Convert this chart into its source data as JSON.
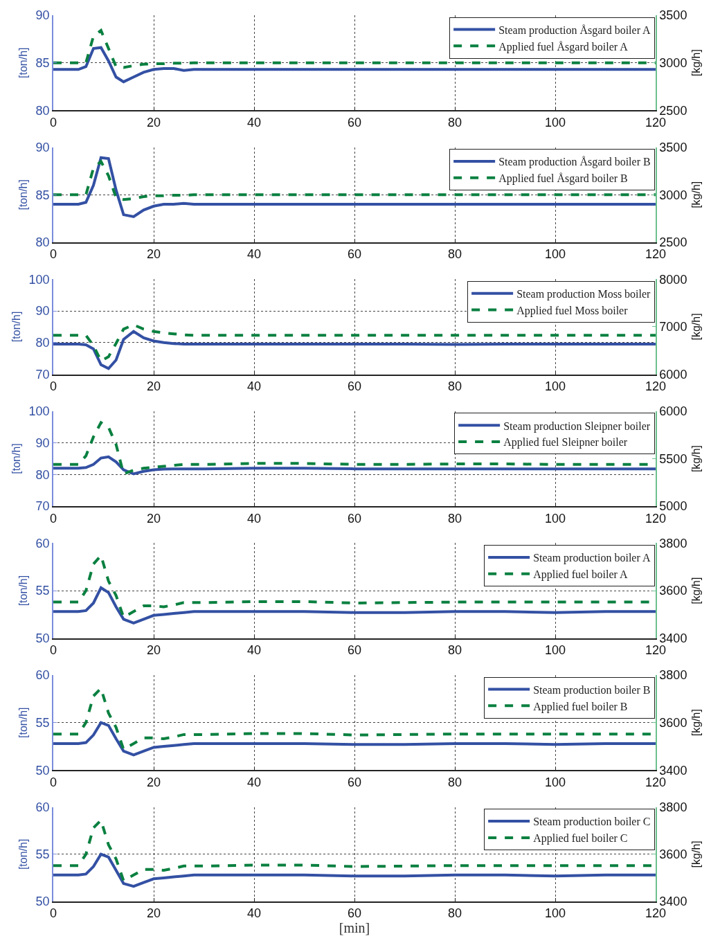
{
  "chart_data": [
    {
      "type": "line",
      "x": [
        0,
        5,
        6.5,
        8,
        9.5,
        11,
        12.5,
        14,
        16,
        18,
        20,
        22,
        24,
        26,
        28,
        30,
        40,
        50,
        60,
        70,
        80,
        90,
        100,
        110,
        120
      ],
      "xlim": [
        0,
        120
      ],
      "xticks": [
        0,
        20,
        40,
        60,
        80,
        100,
        120
      ],
      "ylim": [
        80,
        90
      ],
      "yticks": [
        80,
        85,
        90
      ],
      "y2lim": [
        2500,
        3500
      ],
      "y2ticks": [
        2500,
        3000,
        3500
      ],
      "ylabel": "[ton/h]",
      "y2label": "[kg/h]",
      "grid": true,
      "legend": "top right",
      "series": [
        {
          "name": "Steam production Åsgard boiler A",
          "color": "#3350a3",
          "line_style": "solid",
          "values": [
            84.3,
            84.3,
            84.6,
            86.5,
            86.6,
            85.2,
            83.5,
            83.0,
            83.5,
            84.0,
            84.3,
            84.4,
            84.4,
            84.2,
            84.3,
            84.3,
            84.3,
            84.3,
            84.3,
            84.3,
            84.3,
            84.3,
            84.3,
            84.3,
            84.3
          ]
        },
        {
          "name": "Applied fuel Åsgard boiler A",
          "color": "#0a8040",
          "line_style": "dashed",
          "axis": "y2",
          "values": [
            3000,
            3000,
            3000,
            3280,
            3340,
            3150,
            2960,
            2950,
            2970,
            2985,
            2990,
            2990,
            2995,
            2995,
            3000,
            3000,
            3000,
            3000,
            3000,
            3000,
            3000,
            3000,
            3000,
            3000,
            3000
          ]
        }
      ]
    },
    {
      "type": "line",
      "x": [
        0,
        5,
        6.5,
        8,
        9.5,
        11,
        12.5,
        14,
        16,
        18,
        20,
        22,
        24,
        26,
        28,
        30,
        40,
        50,
        60,
        70,
        80,
        90,
        100,
        110,
        120
      ],
      "xlim": [
        0,
        120
      ],
      "xticks": [
        0,
        20,
        40,
        60,
        80,
        100,
        120
      ],
      "ylim": [
        80,
        90
      ],
      "yticks": [
        80,
        85,
        90
      ],
      "y2lim": [
        2500,
        3500
      ],
      "y2ticks": [
        2500,
        3000,
        3500
      ],
      "ylabel": "[ton/h]",
      "y2label": "[kg/h]",
      "grid": true,
      "legend": "top right",
      "series": [
        {
          "name": "Steam production Åsgard boiler B",
          "color": "#3350a3",
          "line_style": "solid",
          "values": [
            84.0,
            84.0,
            84.2,
            86.0,
            88.9,
            88.8,
            85.5,
            82.9,
            82.7,
            83.4,
            83.8,
            84.0,
            84.0,
            84.1,
            84.0,
            84.0,
            84.0,
            84.0,
            84.0,
            84.0,
            84.0,
            84.0,
            84.0,
            84.0,
            84.0
          ]
        },
        {
          "name": "Applied fuel Åsgard boiler B",
          "color": "#0a8040",
          "line_style": "dashed",
          "axis": "y2",
          "values": [
            3000,
            3000,
            3000,
            3280,
            3350,
            3200,
            2970,
            2950,
            2960,
            2980,
            2990,
            2990,
            2995,
            2995,
            3000,
            3000,
            3000,
            3000,
            3000,
            3000,
            3000,
            3000,
            3000,
            3000,
            3000
          ]
        }
      ]
    },
    {
      "type": "line",
      "x": [
        0,
        5,
        6.5,
        8,
        9.5,
        11,
        12.5,
        14,
        16,
        18,
        20,
        22,
        24,
        26,
        28,
        30,
        40,
        50,
        60,
        70,
        80,
        90,
        100,
        110,
        120
      ],
      "xlim": [
        0,
        120
      ],
      "xticks": [
        0,
        20,
        40,
        60,
        80,
        100,
        120
      ],
      "ylim": [
        70,
        100
      ],
      "yticks": [
        70,
        80,
        90,
        100
      ],
      "y2lim": [
        6000,
        8000
      ],
      "y2ticks": [
        6000,
        7000,
        8000
      ],
      "ylabel": "[ton/h]",
      "y2label": "[kg/h]",
      "grid": true,
      "legend": "top right",
      "series": [
        {
          "name": "Steam production Moss boiler",
          "color": "#3350a3",
          "line_style": "solid",
          "values": [
            79.5,
            79.5,
            79.3,
            78.0,
            73.0,
            71.8,
            74.5,
            81.0,
            83.5,
            81.5,
            80.5,
            80.0,
            79.7,
            79.5,
            79.5,
            79.5,
            79.5,
            79.5,
            79.5,
            79.5,
            79.4,
            79.5,
            79.5,
            79.5,
            79.5
          ]
        },
        {
          "name": "Applied fuel Moss boiler",
          "color": "#0a8040",
          "line_style": "dashed",
          "axis": "y2",
          "values": [
            6820,
            6820,
            6820,
            6600,
            6280,
            6370,
            6650,
            6950,
            7040,
            6950,
            6900,
            6870,
            6850,
            6830,
            6820,
            6820,
            6820,
            6820,
            6820,
            6820,
            6820,
            6820,
            6820,
            6820,
            6820
          ]
        }
      ]
    },
    {
      "type": "line",
      "x": [
        0,
        5,
        6.5,
        8,
        9.5,
        11,
        12.5,
        14,
        16,
        18,
        20,
        22,
        24,
        26,
        28,
        30,
        40,
        50,
        60,
        70,
        80,
        90,
        100,
        110,
        120
      ],
      "xlim": [
        0,
        120
      ],
      "xticks": [
        0,
        20,
        40,
        60,
        80,
        100,
        120
      ],
      "ylim": [
        70,
        100
      ],
      "yticks": [
        70,
        80,
        90,
        100
      ],
      "y2lim": [
        5000,
        6000
      ],
      "y2ticks": [
        5000,
        5500,
        6000
      ],
      "ylabel": "[ton/h]",
      "y2label": "[kg/h]",
      "grid": true,
      "legend": "top right",
      "series": [
        {
          "name": "Steam production Sleipner boiler",
          "color": "#3350a3",
          "line_style": "solid",
          "values": [
            82.0,
            82.0,
            82.2,
            83.2,
            85.2,
            85.6,
            84.0,
            81.5,
            80.2,
            81.0,
            81.5,
            81.7,
            81.8,
            81.8,
            81.8,
            81.8,
            82.0,
            82.0,
            81.8,
            81.8,
            81.8,
            81.8,
            81.8,
            81.8,
            81.8
          ]
        },
        {
          "name": "Applied fuel Sleipner boiler",
          "color": "#0a8040",
          "line_style": "dashed",
          "axis": "y2",
          "values": [
            5440,
            5440,
            5530,
            5730,
            5880,
            5830,
            5650,
            5340,
            5380,
            5400,
            5410,
            5420,
            5430,
            5440,
            5440,
            5440,
            5450,
            5450,
            5440,
            5440,
            5445,
            5445,
            5440,
            5440,
            5440
          ]
        }
      ]
    },
    {
      "type": "line",
      "x": [
        0,
        5,
        6.5,
        8,
        9.5,
        11,
        12.5,
        14,
        16,
        18,
        20,
        22,
        24,
        26,
        28,
        30,
        40,
        50,
        60,
        70,
        80,
        90,
        100,
        110,
        120
      ],
      "xlim": [
        0,
        120
      ],
      "xticks": [
        0,
        20,
        40,
        60,
        80,
        100,
        120
      ],
      "ylim": [
        50,
        60
      ],
      "yticks": [
        50,
        55,
        60
      ],
      "y2lim": [
        3400,
        3800
      ],
      "y2ticks": [
        3400,
        3600,
        3800
      ],
      "ylabel": "[ton/h]",
      "y2label": "[kg/h]",
      "grid": true,
      "legend": "top right",
      "series": [
        {
          "name": "Steam production boiler A",
          "color": "#3350a3",
          "line_style": "solid",
          "values": [
            52.8,
            52.8,
            52.9,
            53.7,
            55.3,
            54.8,
            53.3,
            52.0,
            51.6,
            52.0,
            52.4,
            52.5,
            52.6,
            52.7,
            52.8,
            52.8,
            52.8,
            52.8,
            52.7,
            52.7,
            52.8,
            52.8,
            52.7,
            52.8,
            52.8
          ]
        },
        {
          "name": "Applied fuel boiler A",
          "color": "#0a8040",
          "line_style": "dashed",
          "axis": "y2",
          "values": [
            3552,
            3552,
            3600,
            3712,
            3748,
            3640,
            3580,
            3488,
            3512,
            3536,
            3536,
            3532,
            3540,
            3550,
            3550,
            3550,
            3554,
            3554,
            3548,
            3550,
            3552,
            3552,
            3552,
            3552,
            3552
          ]
        }
      ]
    },
    {
      "type": "line",
      "x": [
        0,
        5,
        6.5,
        8,
        9.5,
        11,
        12.5,
        14,
        16,
        18,
        20,
        22,
        24,
        26,
        28,
        30,
        40,
        50,
        60,
        70,
        80,
        90,
        100,
        110,
        120
      ],
      "xlim": [
        0,
        120
      ],
      "xticks": [
        0,
        20,
        40,
        60,
        80,
        100,
        120
      ],
      "ylim": [
        50,
        60
      ],
      "yticks": [
        50,
        55,
        60
      ],
      "y2lim": [
        3400,
        3800
      ],
      "y2ticks": [
        3400,
        3600,
        3800
      ],
      "ylabel": "[ton/h]",
      "y2label": "[kg/h]",
      "grid": true,
      "legend": "top right",
      "series": [
        {
          "name": "Steam production boiler B",
          "color": "#3350a3",
          "line_style": "solid",
          "values": [
            52.8,
            52.8,
            52.9,
            53.7,
            55.0,
            54.7,
            53.3,
            52.0,
            51.6,
            52.0,
            52.4,
            52.5,
            52.6,
            52.7,
            52.8,
            52.8,
            52.8,
            52.8,
            52.7,
            52.7,
            52.8,
            52.8,
            52.7,
            52.8,
            52.8
          ]
        },
        {
          "name": "Applied fuel boiler B",
          "color": "#0a8040",
          "line_style": "dashed",
          "axis": "y2",
          "values": [
            3552,
            3552,
            3600,
            3712,
            3744,
            3640,
            3580,
            3488,
            3512,
            3536,
            3536,
            3532,
            3540,
            3550,
            3550,
            3550,
            3554,
            3554,
            3548,
            3550,
            3552,
            3552,
            3552,
            3552,
            3552
          ]
        }
      ]
    },
    {
      "type": "line",
      "x": [
        0,
        5,
        6.5,
        8,
        9.5,
        11,
        12.5,
        14,
        16,
        18,
        20,
        22,
        24,
        26,
        28,
        30,
        40,
        50,
        60,
        70,
        80,
        90,
        100,
        110,
        120
      ],
      "xlim": [
        0,
        120
      ],
      "xticks": [
        0,
        20,
        40,
        60,
        80,
        100,
        120
      ],
      "ylim": [
        50,
        60
      ],
      "yticks": [
        50,
        55,
        60
      ],
      "y2lim": [
        3400,
        3800
      ],
      "y2ticks": [
        3400,
        3600,
        3800
      ],
      "ylabel": "[ton/h]",
      "y2label": "[kg/h]",
      "xlabel": "[min]",
      "grid": true,
      "legend": "top right",
      "series": [
        {
          "name": "Steam production boiler C",
          "color": "#3350a3",
          "line_style": "solid",
          "values": [
            52.8,
            52.8,
            52.9,
            53.7,
            55.0,
            54.7,
            53.3,
            51.9,
            51.6,
            52.0,
            52.4,
            52.5,
            52.6,
            52.7,
            52.8,
            52.8,
            52.8,
            52.8,
            52.7,
            52.7,
            52.8,
            52.8,
            52.7,
            52.8,
            52.8
          ]
        },
        {
          "name": "Applied fuel boiler C",
          "color": "#0a8040",
          "line_style": "dashed",
          "axis": "y2",
          "values": [
            3552,
            3552,
            3600,
            3712,
            3744,
            3640,
            3580,
            3488,
            3512,
            3536,
            3536,
            3532,
            3540,
            3550,
            3550,
            3550,
            3554,
            3554,
            3548,
            3550,
            3552,
            3552,
            3552,
            3552,
            3552
          ]
        }
      ]
    }
  ]
}
